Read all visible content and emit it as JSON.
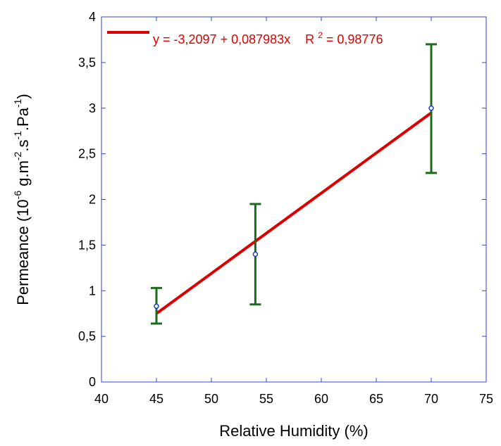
{
  "chart_data": {
    "type": "scatter",
    "xlabel": "Relative Humidity (%)",
    "ylabel": {
      "base": "Permeance (10",
      "exp1": "-6",
      "mid1": " g.m",
      "exp2": "-2",
      "mid2": ".s",
      "exp3": "-1",
      "mid3": ".Pa",
      "exp4": "-1",
      "end": ")"
    },
    "xlim": [
      40,
      75
    ],
    "ylim": [
      0,
      4
    ],
    "x_ticks": [
      40,
      45,
      50,
      55,
      60,
      65,
      70,
      75
    ],
    "x_tick_labels": [
      "40",
      "45",
      "50",
      "55",
      "60",
      "65",
      "70",
      "75"
    ],
    "y_ticks": [
      0,
      0.5,
      1,
      1.5,
      2,
      2.5,
      3,
      3.5,
      4
    ],
    "y_tick_labels": [
      "0",
      "0,5",
      "1",
      "1,5",
      "2",
      "2,5",
      "3",
      "3,5",
      "4"
    ],
    "points": [
      {
        "x": 45,
        "y": 0.83,
        "err_low": 0.64,
        "err_high": 1.03
      },
      {
        "x": 54,
        "y": 1.4,
        "err_low": 0.85,
        "err_high": 1.95
      },
      {
        "x": 70,
        "y": 3.0,
        "err_low": 2.29,
        "err_high": 3.7
      }
    ],
    "fit": {
      "intercept": -3.2097,
      "slope": 0.087983,
      "x_range": [
        45,
        70
      ]
    },
    "legend": {
      "placement": "top-left",
      "eq_text": "y = -3,2097 + 0,087983x",
      "r2_prefix": "R",
      "r2_exp": "2",
      "r2_value": "= 0,98776"
    },
    "grid": false,
    "colors": {
      "fit_line": "#dd0000",
      "error_bar": "#1b6b1b",
      "marker": "#1f3fbf",
      "axis": "#3344cc",
      "text": "#000000"
    }
  }
}
